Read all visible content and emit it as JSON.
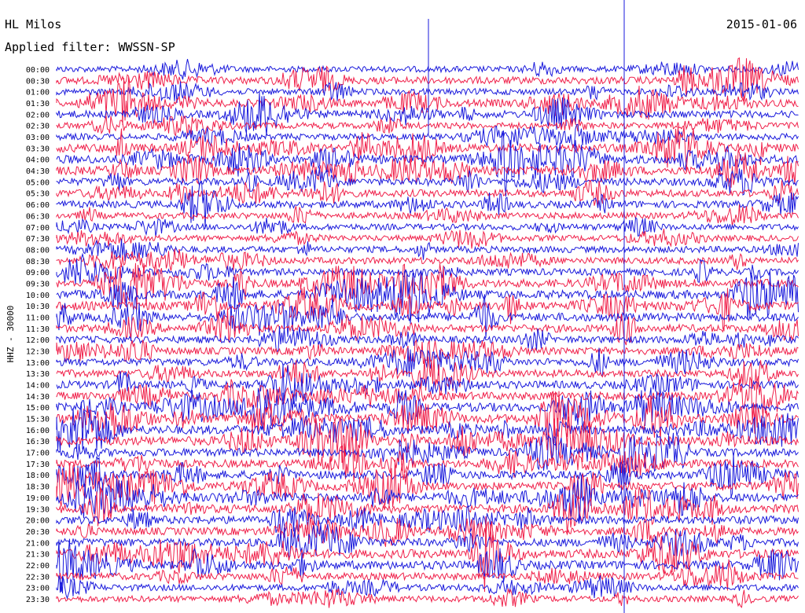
{
  "header": {
    "station": "HL Milos",
    "date": "2015-01-06",
    "filter_label": "Applied filter: WWSSN-SP"
  },
  "chart_data": {
    "type": "line",
    "title": "HL Milos",
    "subtitle": "Applied filter: WWSSN-SP",
    "date": "2015-01-06",
    "ylabel": "HHZ - 30000",
    "row_labels": [
      "00:00",
      "00:30",
      "01:00",
      "01:30",
      "02:00",
      "02:30",
      "03:00",
      "03:30",
      "04:00",
      "04:30",
      "05:00",
      "05:30",
      "06:00",
      "06:30",
      "07:00",
      "07:30",
      "08:00",
      "08:30",
      "09:00",
      "09:30",
      "10:00",
      "10:30",
      "11:00",
      "11:30",
      "12:00",
      "12:30",
      "13:00",
      "13:30",
      "14:00",
      "14:30",
      "15:00",
      "15:30",
      "16:00",
      "16:30",
      "17:00",
      "17:30",
      "18:00",
      "18:30",
      "19:00",
      "19:30",
      "20:00",
      "20:30",
      "21:00",
      "21:30",
      "22:00",
      "22:30",
      "23:00",
      "23:30"
    ],
    "series_colors": [
      "#1a1adc",
      "#f0204a"
    ],
    "activity": [
      0.25,
      0.55,
      0.3,
      0.65,
      0.55,
      0.3,
      0.35,
      0.75,
      0.8,
      0.8,
      0.55,
      0.5,
      0.5,
      0.3,
      0.3,
      0.25,
      0.35,
      0.4,
      0.45,
      0.7,
      0.8,
      0.8,
      0.75,
      0.6,
      0.5,
      0.55,
      0.55,
      0.55,
      0.6,
      0.65,
      0.8,
      0.85,
      0.9,
      0.9,
      0.7,
      0.65,
      0.75,
      0.7,
      0.8,
      0.8,
      0.7,
      0.6,
      0.65,
      0.85,
      0.8,
      0.45,
      0.35,
      0.3
    ],
    "grid": false,
    "legend": "none"
  }
}
